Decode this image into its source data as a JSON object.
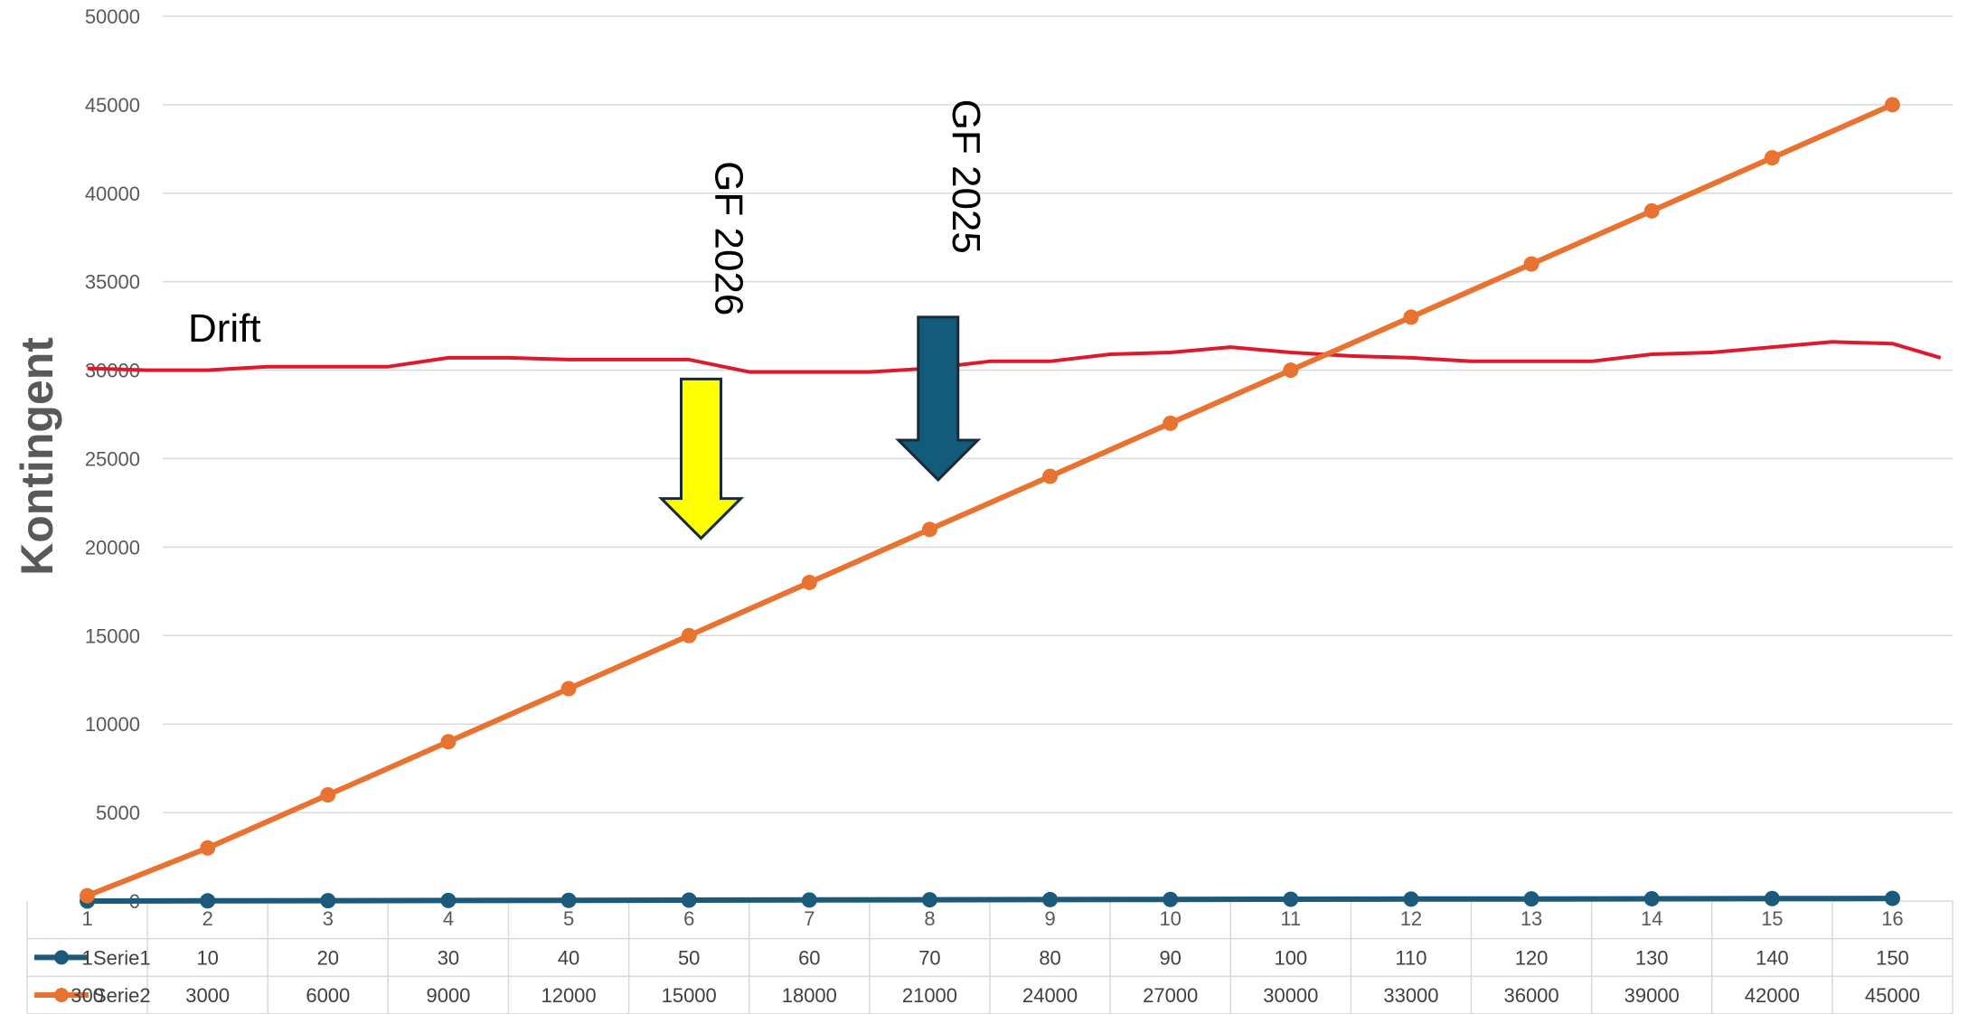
{
  "chart_data": {
    "type": "line",
    "title": "",
    "xlabel": "",
    "ylabel": "Kontingent",
    "ylim": [
      0,
      50000
    ],
    "yticks": [
      0,
      5000,
      10000,
      15000,
      20000,
      25000,
      30000,
      35000,
      40000,
      45000,
      50000
    ],
    "grid": true,
    "categories": [
      "1",
      "2",
      "3",
      "4",
      "5",
      "6",
      "7",
      "8",
      "9",
      "10",
      "11",
      "12",
      "13",
      "14",
      "15",
      "16"
    ],
    "series": [
      {
        "name": "Serie1",
        "color": "#1b5a7a",
        "values": [
          1,
          10,
          20,
          30,
          40,
          50,
          60,
          70,
          80,
          90,
          100,
          110,
          120,
          130,
          140,
          150
        ]
      },
      {
        "name": "Serie2",
        "color": "#e87331",
        "values": [
          300,
          3000,
          6000,
          9000,
          12000,
          15000,
          18000,
          21000,
          24000,
          27000,
          30000,
          33000,
          36000,
          39000,
          42000,
          45000
        ]
      }
    ],
    "data_table": true,
    "annotations": {
      "drift": {
        "label": "Drift",
        "color": "#e0182c",
        "points": [
          [
            1,
            30100
          ],
          [
            1.5,
            30000
          ],
          [
            2,
            30000
          ],
          [
            2.5,
            30200
          ],
          [
            3,
            30200
          ],
          [
            3.5,
            30200
          ],
          [
            4,
            30700
          ],
          [
            4.5,
            30700
          ],
          [
            5,
            30600
          ],
          [
            5.5,
            30600
          ],
          [
            6,
            30600
          ],
          [
            6.5,
            29900
          ],
          [
            7,
            29900
          ],
          [
            7.5,
            29900
          ],
          [
            8,
            30100
          ],
          [
            8.5,
            30500
          ],
          [
            9,
            30500
          ],
          [
            9.5,
            30900
          ],
          [
            10,
            31000
          ],
          [
            10.5,
            31300
          ],
          [
            11,
            31000
          ],
          [
            11.5,
            30800
          ],
          [
            12,
            30700
          ],
          [
            12.5,
            30500
          ],
          [
            13,
            30500
          ],
          [
            13.5,
            30500
          ],
          [
            14,
            30900
          ],
          [
            14.5,
            31000
          ],
          [
            15,
            31300
          ],
          [
            15.5,
            31600
          ],
          [
            16,
            31500
          ],
          [
            16.4,
            30700
          ]
        ]
      },
      "arrows": [
        {
          "label": "GF 2026",
          "color": "#ffff00",
          "x": 6.1,
          "top": 29500,
          "tip": 20500
        },
        {
          "label": "GF 2025",
          "color": "#135b7c",
          "x": 8.07,
          "top": 33000,
          "tip": 23800
        }
      ]
    }
  }
}
